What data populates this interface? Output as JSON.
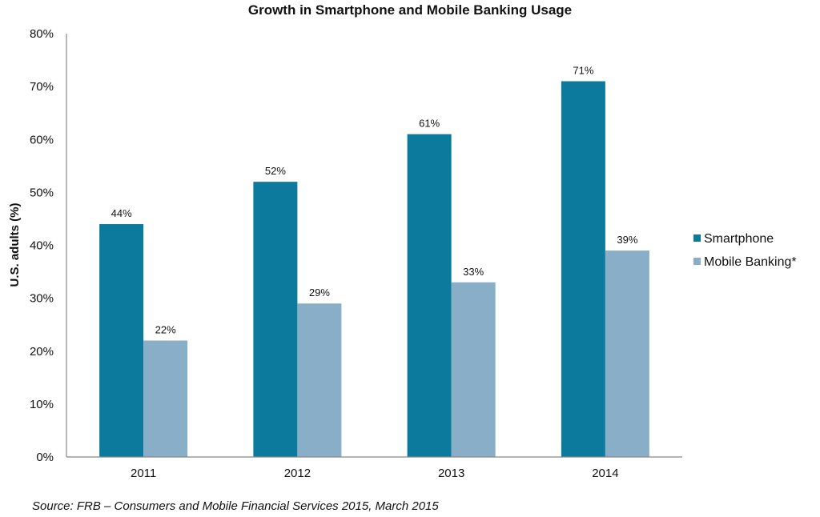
{
  "chart_data": {
    "type": "bar",
    "title": "Growth in Smartphone and Mobile Banking Usage",
    "xlabel": "",
    "ylabel": "U.S. adults (%)",
    "ylim": [
      0,
      80
    ],
    "yticks": [
      "0%",
      "10%",
      "20%",
      "30%",
      "40%",
      "50%",
      "60%",
      "70%",
      "80%"
    ],
    "ytick_values": [
      0,
      10,
      20,
      30,
      40,
      50,
      60,
      70,
      80
    ],
    "categories": [
      "2011",
      "2012",
      "2013",
      "2014"
    ],
    "series": [
      {
        "name": "Smartphone",
        "values": [
          44,
          52,
          61,
          71
        ],
        "labels": [
          "44%",
          "52%",
          "61%",
          "71%"
        ],
        "color": "#0b7a9c"
      },
      {
        "name": "Mobile Banking*",
        "values": [
          22,
          29,
          33,
          39
        ],
        "labels": [
          "22%",
          "29%",
          "33%",
          "39%"
        ],
        "color": "#88aec8"
      }
    ],
    "legend_position": "right",
    "grid": false
  },
  "source": "Source: FRB – Consumers and Mobile Financial Services 2015, March 2015"
}
